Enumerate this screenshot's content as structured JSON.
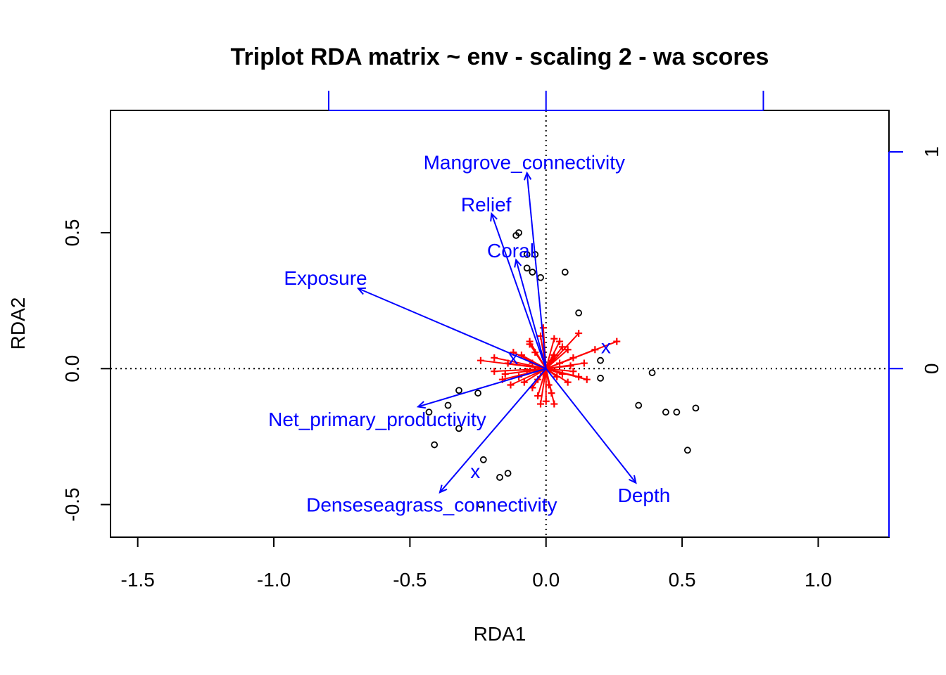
{
  "colors": {
    "environment": "#0000ff",
    "species": "#ff0000",
    "sites": "#000000"
  },
  "chart_data": {
    "type": "scatter",
    "title": "Triplot RDA matrix ~ env - scaling 2 - wa scores",
    "xlabel": "RDA1",
    "ylabel": "RDA2",
    "xlim": [
      -1.6,
      1.26
    ],
    "ylim": [
      -0.62,
      0.95
    ],
    "xticks": [
      -1.5,
      -1.0,
      -0.5,
      0.0,
      0.5,
      1.0
    ],
    "xtick_labels": [
      "-1.5",
      "-1.0",
      "-0.5",
      "0.0",
      "0.5",
      "1.0"
    ],
    "yticks": [
      -0.5,
      0.0,
      0.5
    ],
    "ytick_labels": [
      "-0.5",
      "0.0",
      "0.5"
    ],
    "secondary_axes": {
      "top_ticks": [
        -0.8,
        0.0,
        0.8
      ],
      "right_ticks": [
        0.0,
        0.8
      ],
      "right_tick_labels": [
        "0",
        "1"
      ]
    },
    "env_arrows": [
      {
        "name": "Mangrove_connectivity",
        "x": -0.07,
        "y": 0.72,
        "lx": -0.08,
        "ly": 0.76
      },
      {
        "name": "Relief",
        "x": -0.2,
        "y": 0.57,
        "lx": -0.22,
        "ly": 0.605
      },
      {
        "name": "Coral",
        "x": -0.11,
        "y": 0.4,
        "lx": -0.13,
        "ly": 0.435
      },
      {
        "name": "Exposure",
        "x": -0.69,
        "y": 0.295,
        "lx": -0.81,
        "ly": 0.335
      },
      {
        "name": "Net_primary_productivity",
        "x": -0.47,
        "y": -0.14,
        "lx": -0.62,
        "ly": -0.185
      },
      {
        "name": "Denseseagrass_connectivity",
        "x": -0.39,
        "y": -0.455,
        "lx": -0.42,
        "ly": -0.5
      },
      {
        "name": "Depth",
        "x": 0.33,
        "y": -0.42,
        "lx": 0.36,
        "ly": -0.465
      }
    ],
    "centroids": [
      {
        "label": "x",
        "x": -0.12,
        "y": 0.04
      },
      {
        "label": "x",
        "x": 0.22,
        "y": 0.08
      },
      {
        "label": "x",
        "x": -0.26,
        "y": -0.38
      }
    ],
    "sites": [
      {
        "x": -0.1,
        "y": 0.5
      },
      {
        "x": -0.11,
        "y": 0.49
      },
      {
        "x": -0.07,
        "y": 0.42
      },
      {
        "x": -0.04,
        "y": 0.42
      },
      {
        "x": -0.07,
        "y": 0.37
      },
      {
        "x": -0.05,
        "y": 0.355
      },
      {
        "x": -0.02,
        "y": 0.335
      },
      {
        "x": 0.07,
        "y": 0.355
      },
      {
        "x": 0.12,
        "y": 0.205
      },
      {
        "x": 0.2,
        "y": 0.03
      },
      {
        "x": 0.2,
        "y": -0.035
      },
      {
        "x": 0.39,
        "y": -0.015
      },
      {
        "x": 0.34,
        "y": -0.135
      },
      {
        "x": 0.44,
        "y": -0.16
      },
      {
        "x": 0.48,
        "y": -0.16
      },
      {
        "x": 0.55,
        "y": -0.145
      },
      {
        "x": 0.52,
        "y": -0.3
      },
      {
        "x": -0.32,
        "y": -0.08
      },
      {
        "x": -0.25,
        "y": -0.09
      },
      {
        "x": -0.43,
        "y": -0.16
      },
      {
        "x": -0.36,
        "y": -0.135
      },
      {
        "x": -0.32,
        "y": -0.22
      },
      {
        "x": -0.41,
        "y": -0.28
      },
      {
        "x": -0.23,
        "y": -0.335
      },
      {
        "x": -0.14,
        "y": -0.385
      },
      {
        "x": -0.17,
        "y": -0.4
      },
      {
        "x": -0.24,
        "y": -0.5
      }
    ],
    "species": [
      {
        "x": 0.26,
        "y": 0.1
      },
      {
        "x": 0.12,
        "y": 0.13
      },
      {
        "x": -0.01,
        "y": 0.15
      },
      {
        "x": -0.02,
        "y": 0.12
      },
      {
        "x": 0.05,
        "y": 0.1
      },
      {
        "x": -0.06,
        "y": 0.09
      },
      {
        "x": 0.08,
        "y": 0.07
      },
      {
        "x": -0.24,
        "y": 0.03
      },
      {
        "x": -0.19,
        "y": 0.04
      },
      {
        "x": -0.14,
        "y": 0.02
      },
      {
        "x": 0.14,
        "y": 0.02
      },
      {
        "x": 0.18,
        "y": 0.07
      },
      {
        "x": -0.15,
        "y": -0.02
      },
      {
        "x": -0.19,
        "y": -0.01
      },
      {
        "x": -0.16,
        "y": -0.04
      },
      {
        "x": 0.15,
        "y": -0.04
      },
      {
        "x": 0.1,
        "y": -0.01
      },
      {
        "x": 0.06,
        "y": -0.02
      },
      {
        "x": 0.08,
        "y": -0.05
      },
      {
        "x": -0.08,
        "y": -0.05
      },
      {
        "x": -0.03,
        "y": -0.1
      },
      {
        "x": 0.0,
        "y": -0.12
      },
      {
        "x": -0.02,
        "y": -0.13
      },
      {
        "x": 0.03,
        "y": -0.13
      },
      {
        "x": 0.02,
        "y": -0.09
      },
      {
        "x": -0.04,
        "y": 0.06
      },
      {
        "x": -0.09,
        "y": 0.05
      },
      {
        "x": 0.03,
        "y": 0.05
      },
      {
        "x": 0.1,
        "y": 0.04
      },
      {
        "x": -0.05,
        "y": 0.02
      },
      {
        "x": 0.05,
        "y": 0.02
      },
      {
        "x": -0.07,
        "y": -0.01
      },
      {
        "x": 0.04,
        "y": -0.03
      },
      {
        "x": -0.03,
        "y": -0.04
      },
      {
        "x": 0.01,
        "y": -0.06
      },
      {
        "x": -0.12,
        "y": 0.06
      },
      {
        "x": 0.06,
        "y": 0.08
      },
      {
        "x": -0.01,
        "y": -0.02
      },
      {
        "x": 0.02,
        "y": 0.03
      },
      {
        "x": -0.1,
        "y": -0.03
      },
      {
        "x": 0.12,
        "y": -0.03
      },
      {
        "x": 0.09,
        "y": 0.01
      },
      {
        "x": -0.06,
        "y": 0.1
      },
      {
        "x": 0.03,
        "y": 0.11
      },
      {
        "x": -0.13,
        "y": -0.06
      },
      {
        "x": -0.05,
        "y": -0.07
      }
    ]
  }
}
